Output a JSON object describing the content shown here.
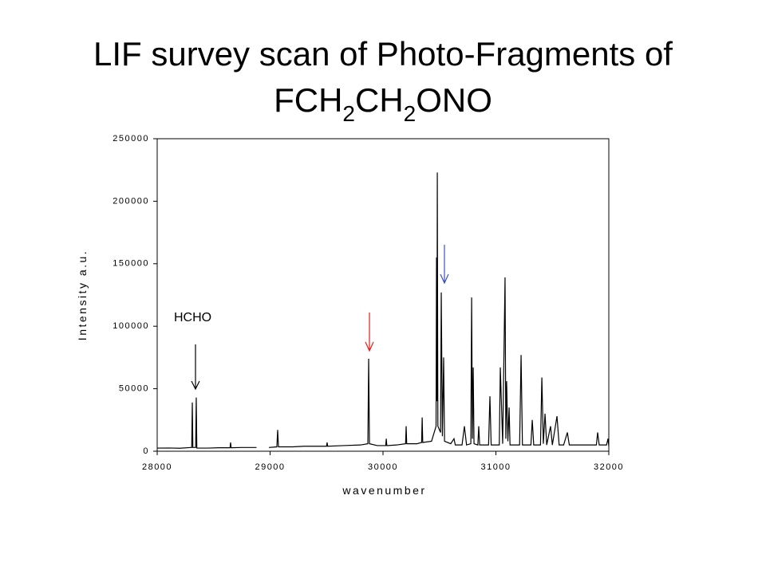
{
  "chart_data": {
    "type": "line",
    "title": "LIF survey scan of Photo-Fragments of",
    "title_formula": [
      "FCH",
      "2",
      "CH",
      "2",
      "ONO"
    ],
    "xlabel": "wavenumber",
    "ylabel": "Intensity a.u.",
    "annotation": "HCHO",
    "color": "#000000",
    "xlim": [
      28000,
      32000
    ],
    "xticks": [
      28000,
      29000,
      30000,
      31000,
      32000
    ],
    "ylim": [
      0,
      250000
    ],
    "yticks": [
      0,
      50000,
      100000,
      150000,
      200000,
      250000
    ],
    "x": [
      28000,
      28100,
      28200,
      28300,
      28306,
      28311,
      28316,
      28341,
      28346,
      28351,
      28450,
      28550,
      28645,
      28650,
      28655,
      28750,
      28880,
      28940,
      28990,
      29060,
      29067,
      29074,
      29200,
      29300,
      29400,
      29500,
      29505,
      29510,
      29650,
      29800,
      29866,
      29873,
      29880,
      29950,
      30024,
      30029,
      30034,
      30120,
      30200,
      30205,
      30210,
      30300,
      30342,
      30347,
      30352,
      30430,
      30470,
      30474,
      30478,
      30481,
      30486,
      30510,
      30516,
      30526,
      30537,
      30545,
      30600,
      30629,
      30640,
      30700,
      30721,
      30740,
      30778,
      30785,
      30792,
      30799,
      30806,
      30840,
      30848,
      30856,
      30935,
      30947,
      30958,
      31030,
      31039,
      31060,
      31081,
      31088,
      31095,
      31106,
      31117,
      31125,
      31210,
      31223,
      31235,
      31310,
      31322,
      31335,
      31395,
      31407,
      31420,
      31435,
      31450,
      31484,
      31500,
      31541,
      31560,
      31600,
      31633,
      31650,
      31800,
      31890,
      31901,
      31915,
      31980,
      31993,
      32000
    ],
    "y": [
      2500,
      2600,
      2400,
      3000,
      3000,
      39000,
      3000,
      3000,
      43000,
      2500,
      2500,
      2800,
      2800,
      7000,
      2800,
      3000,
      3000,
      null,
      3000,
      3500,
      17000,
      3500,
      3500,
      4000,
      4000,
      4000,
      7000,
      4000,
      4500,
      5000,
      6000,
      74000,
      6000,
      4500,
      4500,
      10000,
      4500,
      5000,
      6000,
      20000,
      6000,
      6000,
      7000,
      27000,
      7000,
      8000,
      20000,
      155000,
      40000,
      223000,
      20000,
      15000,
      127000,
      12000,
      75000,
      8000,
      6000,
      10000,
      5000,
      5000,
      20000,
      5000,
      6000,
      123000,
      10000,
      67000,
      6000,
      5000,
      20000,
      5000,
      5000,
      44000,
      5000,
      5000,
      67000,
      6000,
      139000,
      10000,
      56000,
      8000,
      35000,
      5000,
      5000,
      77000,
      5000,
      5000,
      25000,
      5000,
      5000,
      59000,
      6000,
      30000,
      5000,
      20000,
      5000,
      28000,
      5000,
      5000,
      15000,
      5000,
      5000,
      5000,
      15000,
      5000,
      5000,
      10000,
      4000
    ]
  }
}
